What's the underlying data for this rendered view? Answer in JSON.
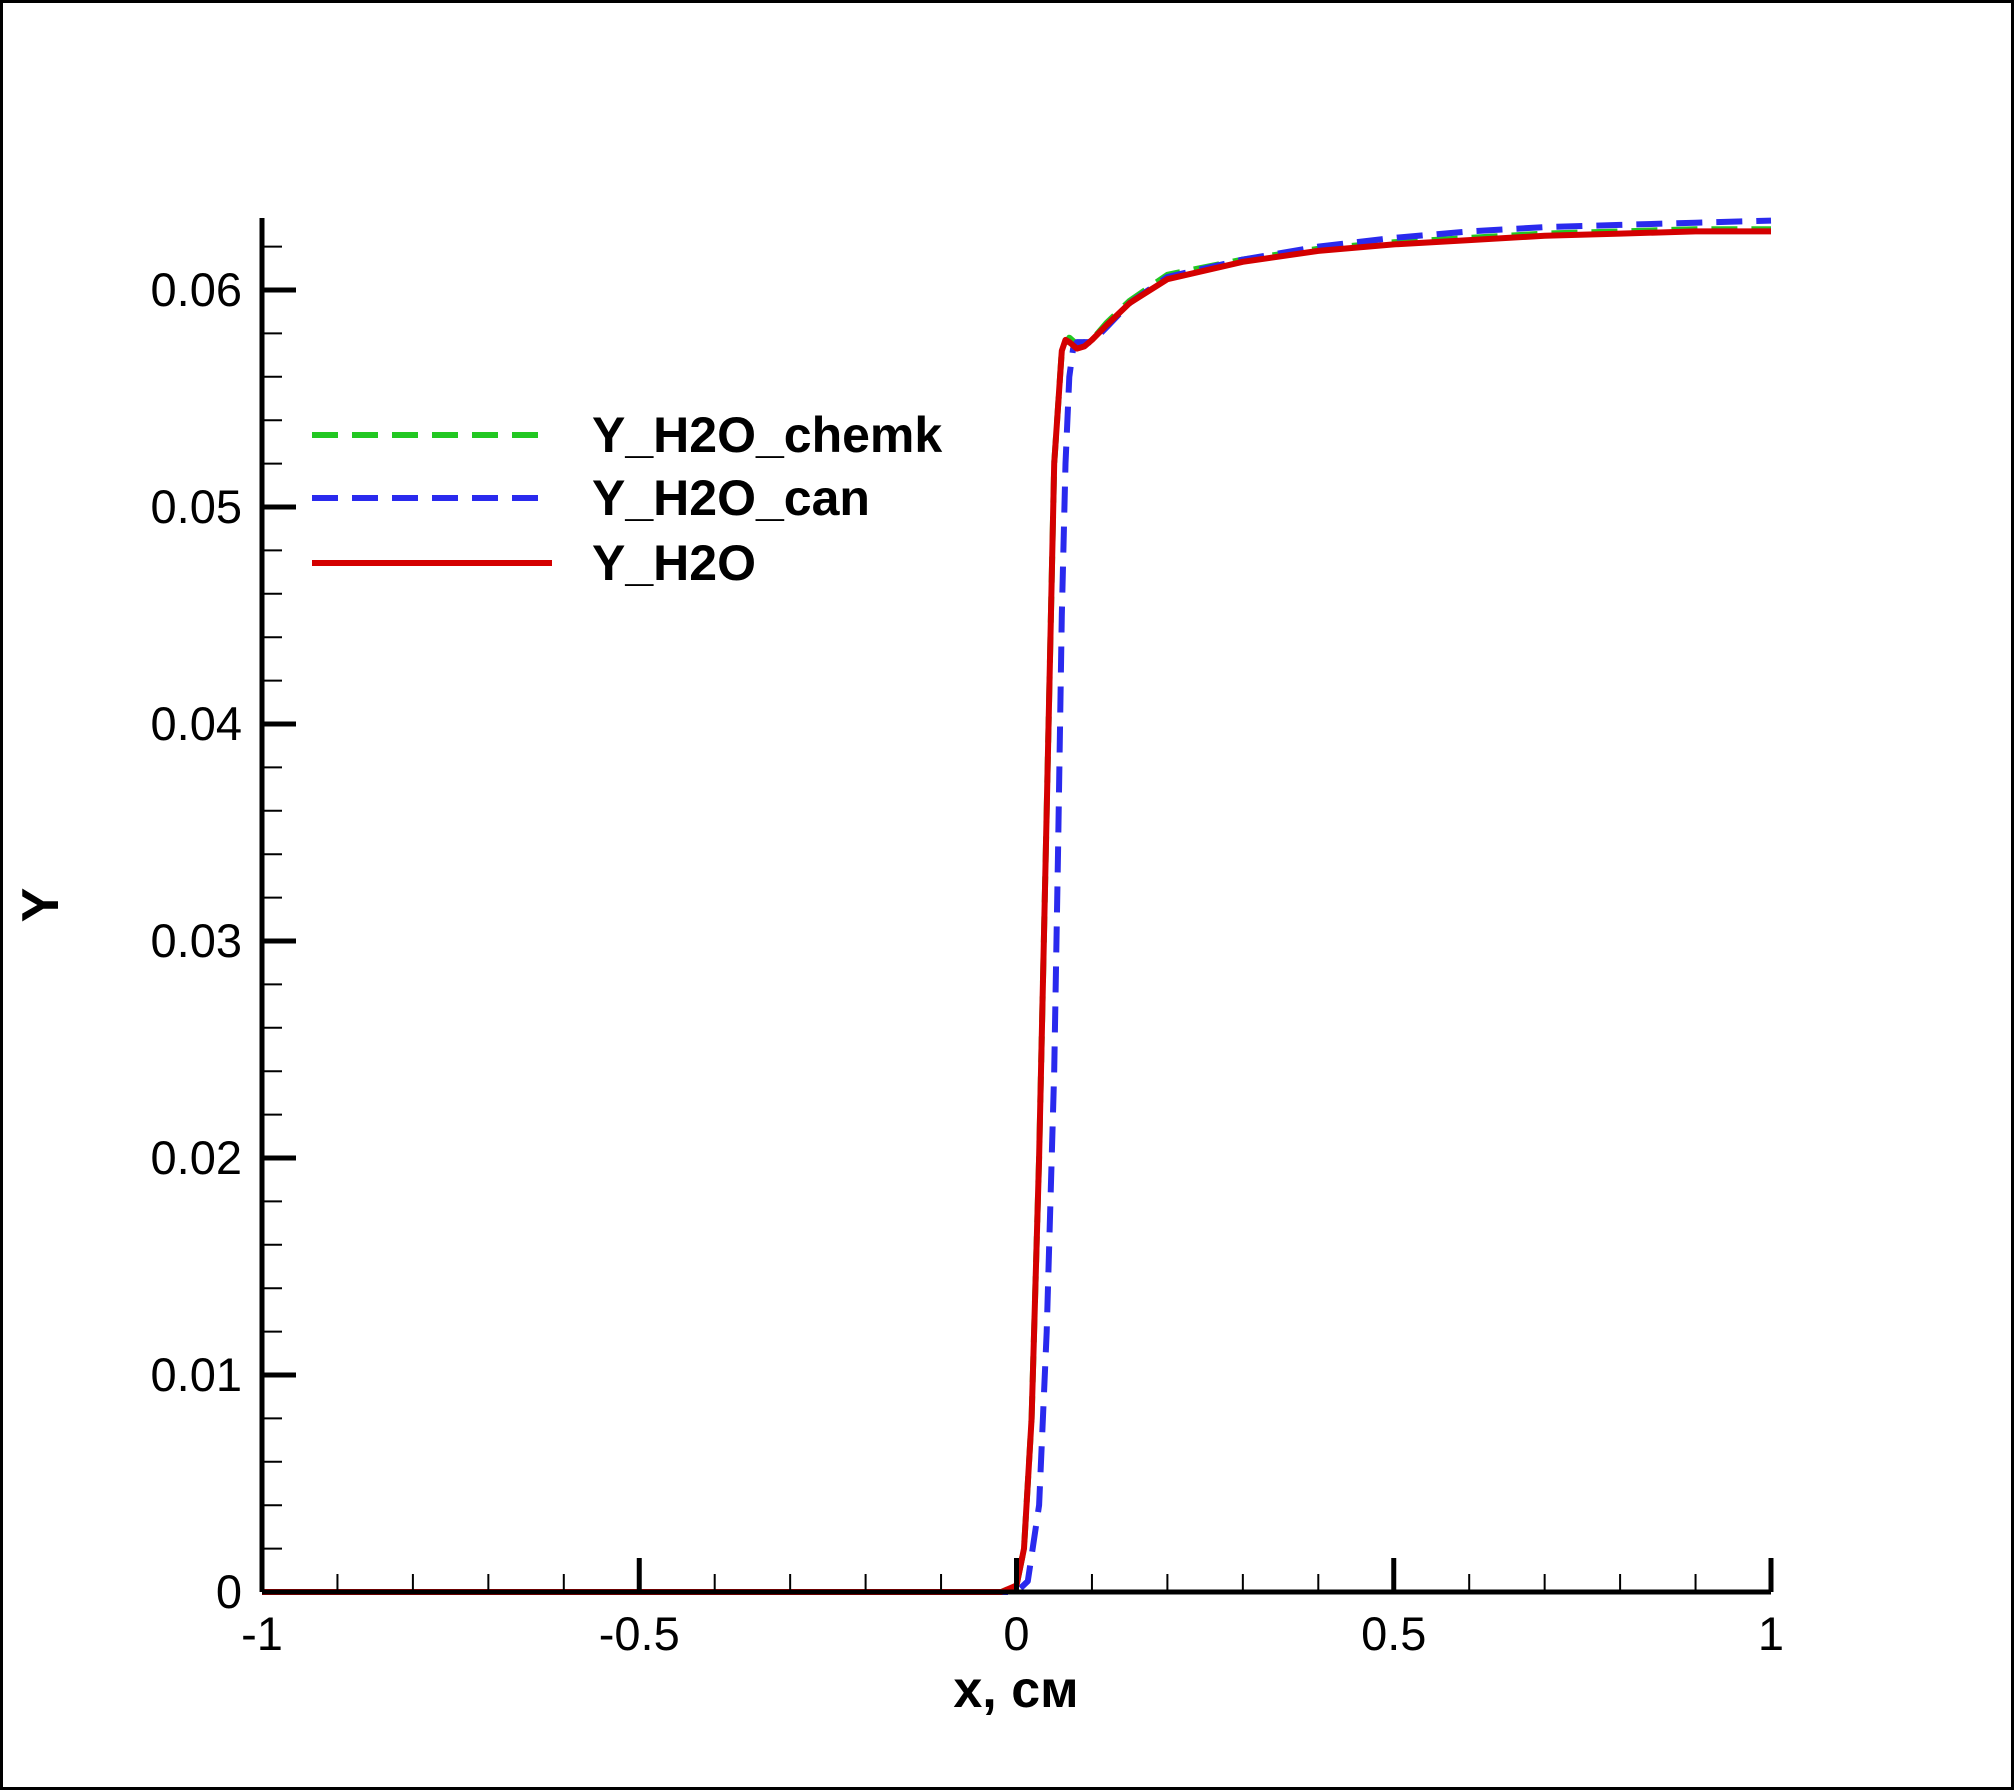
{
  "chart_data": {
    "type": "line",
    "xlabel": "x, см",
    "ylabel": "Y",
    "xlim": [
      -1,
      1
    ],
    "ylim": [
      0,
      0.063
    ],
    "x_ticks": [
      -1,
      -0.5,
      0,
      0.5,
      1
    ],
    "x_tick_labels": [
      "-1",
      "-0.5",
      "0",
      "0.5",
      "1"
    ],
    "y_ticks": [
      0,
      0.01,
      0.02,
      0.03,
      0.04,
      0.05,
      0.06
    ],
    "y_tick_labels": [
      "0",
      "0.01",
      "0.02",
      "0.03",
      "0.04",
      "0.05",
      "0.06"
    ],
    "grid": false,
    "legend_position": "upper-left",
    "series": [
      {
        "name": "Y_H2O_chemk",
        "color": "#22c722",
        "style": "dashed",
        "x": [
          -1,
          -0.02,
          0,
          0.01,
          0.02,
          0.03,
          0.04,
          0.05,
          0.06,
          0.07,
          0.08,
          0.1,
          0.12,
          0.15,
          0.2,
          0.3,
          0.4,
          0.5,
          0.6,
          0.7,
          0.8,
          0.9,
          1.0
        ],
        "y": [
          0,
          0,
          0.0003,
          0.002,
          0.008,
          0.02,
          0.036,
          0.052,
          0.0572,
          0.0578,
          0.0575,
          0.0577,
          0.0585,
          0.0595,
          0.0607,
          0.0614,
          0.0619,
          0.0622,
          0.0624,
          0.0626,
          0.0627,
          0.0628,
          0.0628
        ]
      },
      {
        "name": "Y_H2O_can",
        "color": "#2a2aee",
        "style": "dashed",
        "x": [
          -1,
          0,
          0.015,
          0.03,
          0.04,
          0.05,
          0.055,
          0.06,
          0.065,
          0.07,
          0.075,
          0.08,
          0.1,
          0.12,
          0.15,
          0.2,
          0.3,
          0.4,
          0.5,
          0.6,
          0.7,
          0.8,
          0.9,
          1.0
        ],
        "y": [
          0,
          0,
          0.0005,
          0.004,
          0.012,
          0.024,
          0.034,
          0.045,
          0.052,
          0.056,
          0.0573,
          0.0576,
          0.0576,
          0.0583,
          0.0594,
          0.0606,
          0.0614,
          0.062,
          0.0624,
          0.0627,
          0.0629,
          0.063,
          0.0631,
          0.0632
        ]
      },
      {
        "name": "Y_H2O",
        "color": "#d40000",
        "style": "solid",
        "x": [
          -1,
          -0.02,
          0,
          0.01,
          0.02,
          0.03,
          0.04,
          0.05,
          0.06,
          0.065,
          0.07,
          0.08,
          0.09,
          0.1,
          0.12,
          0.15,
          0.2,
          0.3,
          0.4,
          0.5,
          0.6,
          0.7,
          0.8,
          0.9,
          1.0
        ],
        "y": [
          0,
          0,
          0.0003,
          0.002,
          0.008,
          0.02,
          0.036,
          0.052,
          0.0572,
          0.0577,
          0.0576,
          0.0573,
          0.0574,
          0.0577,
          0.0584,
          0.0594,
          0.0605,
          0.0613,
          0.0618,
          0.0621,
          0.0623,
          0.0625,
          0.0626,
          0.0627,
          0.0627
        ]
      }
    ]
  }
}
